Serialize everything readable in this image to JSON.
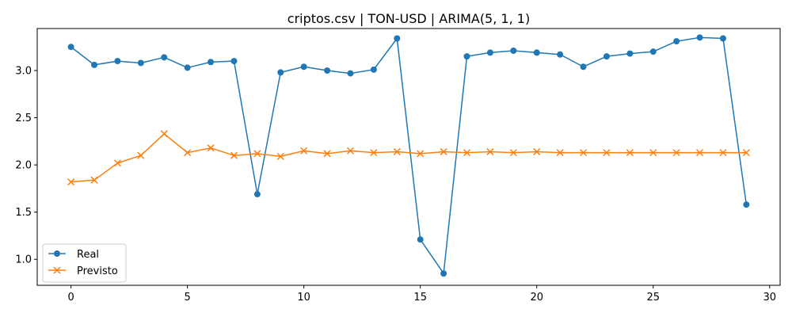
{
  "chart_data": {
    "type": "line",
    "title": "criptos.csv | TON-USD | ARIMA(5, 1, 1)",
    "xlabel": "",
    "ylabel": "",
    "xlim": [
      -1.45,
      30.45
    ],
    "ylim": [
      0.725,
      3.445
    ],
    "xticks": [
      0,
      5,
      10,
      15,
      20,
      25,
      30
    ],
    "xtick_labels": [
      "0",
      "5",
      "10",
      "15",
      "20",
      "25",
      "30"
    ],
    "yticks": [
      1.0,
      1.5,
      2.0,
      2.5,
      3.0
    ],
    "ytick_labels": [
      "1.0",
      "1.5",
      "2.0",
      "2.5",
      "3.0"
    ],
    "grid": false,
    "legend_position": "lower-left",
    "x": [
      0,
      1,
      2,
      3,
      4,
      5,
      6,
      7,
      8,
      9,
      10,
      11,
      12,
      13,
      14,
      15,
      16,
      17,
      18,
      19,
      20,
      21,
      22,
      23,
      24,
      25,
      26,
      27,
      28,
      29
    ],
    "series": [
      {
        "name": "Real",
        "color": "#1f77b4",
        "marker": "circle",
        "values": [
          3.25,
          3.06,
          3.1,
          3.08,
          3.14,
          3.03,
          3.09,
          3.1,
          1.69,
          2.98,
          3.04,
          3.0,
          2.97,
          3.01,
          3.34,
          1.21,
          0.85,
          3.15,
          3.19,
          3.21,
          3.19,
          3.17,
          3.04,
          3.15,
          3.18,
          3.2,
          3.31,
          3.35,
          3.34,
          1.58
        ]
      },
      {
        "name": "Previsto",
        "color": "#ff7f0e",
        "marker": "x",
        "values": [
          1.82,
          1.84,
          2.02,
          2.1,
          2.33,
          2.13,
          2.18,
          2.1,
          2.12,
          2.09,
          2.15,
          2.12,
          2.15,
          2.13,
          2.14,
          2.12,
          2.14,
          2.13,
          2.14,
          2.13,
          2.14,
          2.13,
          2.13,
          2.13,
          2.13,
          2.13,
          2.13,
          2.13,
          2.13,
          2.13
        ]
      }
    ]
  }
}
